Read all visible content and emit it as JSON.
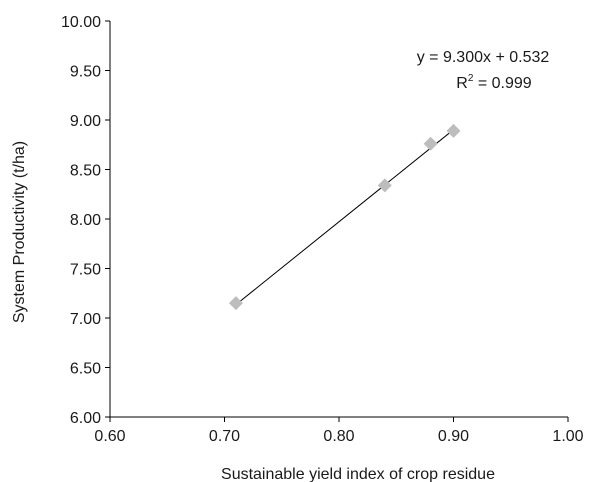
{
  "chart_data": {
    "type": "scatter",
    "title": "",
    "xlabel": "Sustainable yield index of crop residue",
    "ylabel": "System Productivity (t/ha)",
    "xlim": [
      0.6,
      1.0
    ],
    "ylim": [
      6.0,
      10.0
    ],
    "x_ticks": [
      "0.60",
      "0.70",
      "0.80",
      "0.90",
      "1.00"
    ],
    "y_ticks": [
      "6.00",
      "6.50",
      "7.00",
      "7.50",
      "8.00",
      "8.50",
      "9.00",
      "9.50",
      "10.00"
    ],
    "grid": false,
    "legend": "none",
    "marker": "diamond",
    "marker_color": "#bdbdbd",
    "line_color": "#000000",
    "points": [
      {
        "x": 0.71,
        "y": 7.15
      },
      {
        "x": 0.84,
        "y": 8.34
      },
      {
        "x": 0.88,
        "y": 8.76
      },
      {
        "x": 0.9,
        "y": 8.89
      }
    ],
    "trendline": {
      "type": "linear",
      "slope": 9.3,
      "intercept": 0.532,
      "x_range": [
        0.71,
        0.9
      ]
    },
    "annotations": {
      "equation": "y = 9.300x + 0.532",
      "r2_prefix": "R",
      "r2_superscript": "2",
      "r2_value": " = 0.999"
    }
  }
}
